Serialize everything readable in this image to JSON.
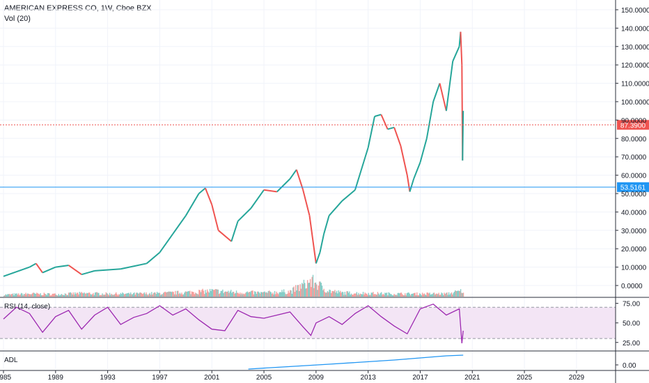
{
  "header": {
    "symbol_line": "AMERICAN EXPRESS CO, 1W, Cboe BZX",
    "volume_label": "Vol (20)"
  },
  "rsi_panel": {
    "label": "RSI (14, close)",
    "upper_band": 70,
    "lower_band": 30
  },
  "adl_panel": {
    "label": "ADL"
  },
  "price_axis": {
    "ticks": [
      "150.0000",
      "140.0000",
      "130.0000",
      "120.0000",
      "110.0000",
      "100.0000",
      "90.0000",
      "80.0000",
      "70.0000",
      "60.0000",
      "50.0000",
      "40.0000",
      "30.0000",
      "20.0000",
      "10.0000",
      "0.0000"
    ]
  },
  "rsi_axis": {
    "ticks": [
      "75.00",
      "50.00",
      "25.00"
    ]
  },
  "adl_axis": {
    "ticks": [
      "0.00"
    ]
  },
  "time_axis": {
    "ticks": [
      "1985",
      "1989",
      "1993",
      "1997",
      "2001",
      "2005",
      "2009",
      "2013",
      "2017",
      "2021",
      "2025",
      "2029"
    ]
  },
  "price_lines": [
    {
      "value": 87.39,
      "label": "87.3900",
      "color": "#ef5350",
      "style": "dotted"
    },
    {
      "value": 53.5161,
      "label": "53.5161",
      "color": "#2196f3",
      "style": "solid"
    }
  ],
  "colors": {
    "up": "#26a69a",
    "down": "#ef5350",
    "rsi_line": "#9c27b0",
    "rsi_band_fill": "#f3e5f5",
    "adl_line": "#2196f3",
    "grid": "#f0f3fa",
    "axis_text": "#131722"
  },
  "chart_data": [
    {
      "type": "line",
      "name": "price",
      "xlim": [
        1985,
        2032
      ],
      "ylim": [
        -5,
        153
      ],
      "x": [
        1985,
        1987,
        1987.5,
        1988,
        1989,
        1990,
        1991,
        1992,
        1994,
        1996,
        1997,
        1998,
        1999,
        2000,
        2000.5,
        2001,
        2001.5,
        2002.5,
        2003,
        2004,
        2005,
        2006,
        2007,
        2007.5,
        2008,
        2008.5,
        2009,
        2009.3,
        2009.6,
        2010,
        2011,
        2012,
        2013,
        2013.5,
        2014,
        2014.5,
        2015,
        2015.5,
        2016,
        2016.2,
        2016.5,
        2017,
        2017.5,
        2018,
        2018.5,
        2019,
        2019.5,
        2020,
        2020.1,
        2020.2,
        2020.25,
        2020.3
      ],
      "values": [
        5,
        10,
        12,
        7,
        10,
        11,
        6,
        8,
        9,
        12,
        18,
        28,
        38,
        50,
        53,
        44,
        30,
        24,
        35,
        42,
        52,
        51,
        58,
        63,
        52,
        38,
        12,
        18,
        28,
        38,
        46,
        52,
        75,
        92,
        93,
        85,
        86,
        76,
        60,
        51,
        58,
        67,
        80,
        100,
        110,
        95,
        122,
        130,
        138,
        120,
        68,
        95
      ],
      "ylabel": ""
    },
    {
      "type": "bar",
      "name": "volume",
      "note_none": "",
      "x": [
        1985,
        1987,
        1989,
        1991,
        1993,
        1995,
        1997,
        1999,
        2001,
        2003,
        2005,
        2007,
        2008,
        2008.5,
        2009,
        2009.5,
        2010,
        2011,
        2013,
        2015,
        2017,
        2019,
        2020.2
      ],
      "values": [
        20,
        30,
        25,
        35,
        30,
        30,
        35,
        45,
        60,
        45,
        40,
        55,
        120,
        160,
        140,
        90,
        60,
        40,
        35,
        30,
        30,
        30,
        60
      ]
    },
    {
      "type": "line",
      "name": "rsi",
      "ylim": [
        15,
        85
      ],
      "x": [
        1985,
        1986,
        1987,
        1988,
        1989,
        1990,
        1991,
        1992,
        1993,
        1994,
        1995,
        1996,
        1997,
        1998,
        1999,
        2000,
        2001,
        2002,
        2003,
        2004,
        2005,
        2006,
        2007,
        2008,
        2008.6,
        2009,
        2010,
        2011,
        2012,
        2013,
        2014,
        2015,
        2016,
        2017,
        2018,
        2019,
        2020,
        2020.2,
        2020.3
      ],
      "values": [
        55,
        70,
        62,
        38,
        58,
        66,
        42,
        60,
        70,
        48,
        57,
        62,
        72,
        60,
        68,
        54,
        42,
        40,
        66,
        58,
        56,
        60,
        64,
        45,
        34,
        50,
        58,
        48,
        62,
        72,
        58,
        46,
        36,
        68,
        74,
        60,
        68,
        24,
        40
      ]
    },
    {
      "type": "line",
      "name": "adl",
      "x": [
        2003.8,
        2006,
        2010,
        2015,
        2019,
        2020.3
      ],
      "values": [
        0,
        5,
        14,
        26,
        38,
        40
      ]
    }
  ]
}
